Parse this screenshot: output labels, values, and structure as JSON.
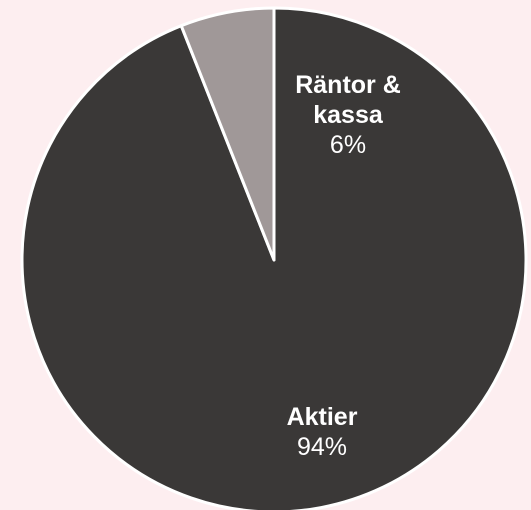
{
  "chart_data": {
    "type": "pie",
    "categories": [
      "Aktier",
      "Räntor & kassa"
    ],
    "values": [
      94,
      6
    ],
    "value_labels": [
      "94%",
      "6%"
    ],
    "colors": [
      "#3a3837",
      "#a09898"
    ]
  }
}
